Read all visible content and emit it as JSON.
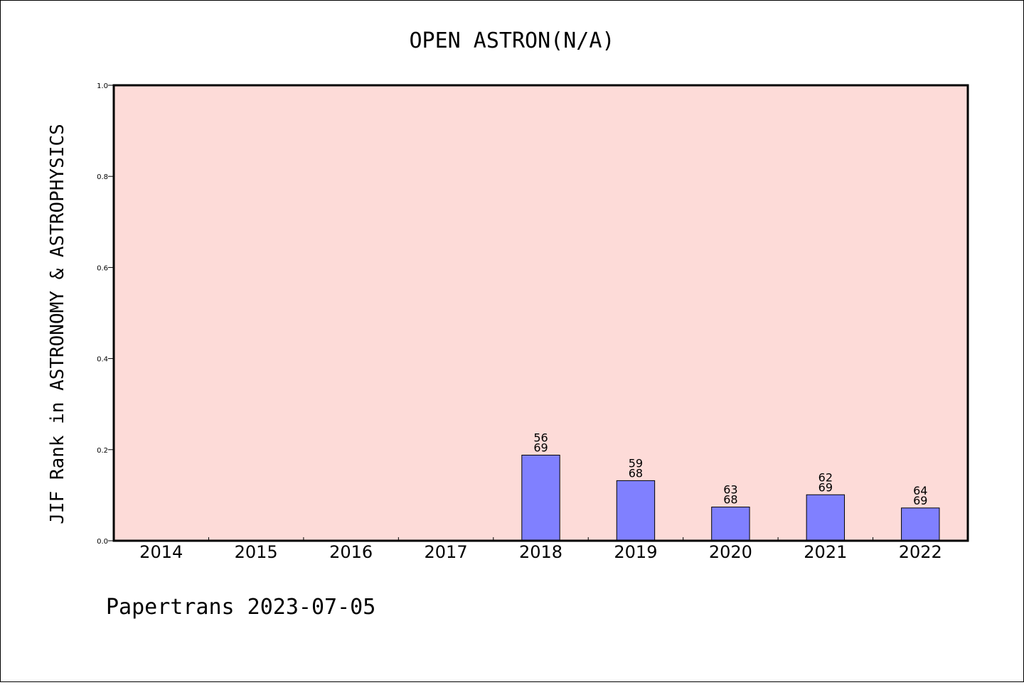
{
  "chart_data": {
    "type": "bar",
    "title": "OPEN ASTRON(N/A)",
    "xlabel": "",
    "ylabel": "JIF Rank in ASTRONOMY & ASTROPHYSICS",
    "categories": [
      "2014",
      "2015",
      "2016",
      "2017",
      "2018",
      "2019",
      "2020",
      "2021",
      "2022"
    ],
    "values": [
      null,
      null,
      null,
      null,
      0.188,
      0.132,
      0.074,
      0.101,
      0.072
    ],
    "ranks": [
      null,
      null,
      null,
      null,
      {
        "rank": "56",
        "total": "69"
      },
      {
        "rank": "59",
        "total": "68"
      },
      {
        "rank": "63",
        "total": "68"
      },
      {
        "rank": "62",
        "total": "69"
      },
      {
        "rank": "64",
        "total": "69"
      }
    ],
    "ylim": [
      0,
      1.0
    ],
    "yticks": [
      "0.0",
      "0.2",
      "0.4",
      "0.6",
      "0.8",
      "1.0"
    ],
    "grid": false,
    "legend": "none",
    "colors": {
      "plot_background": "#fddbd8",
      "bar_fill": "#8080ff",
      "bar_edge": "#000000"
    }
  },
  "footer": {
    "text": "Papertrans 2023-07-05"
  }
}
